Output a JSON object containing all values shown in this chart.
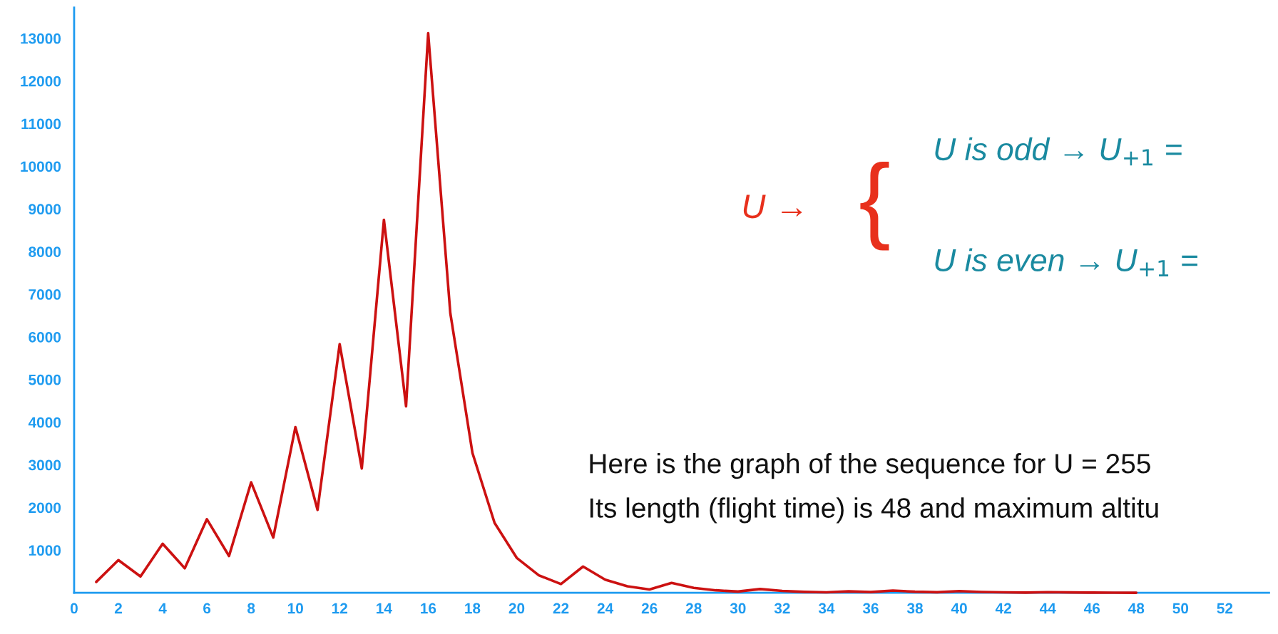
{
  "chart_data": {
    "type": "line",
    "x": [
      1,
      2,
      3,
      4,
      5,
      6,
      7,
      8,
      9,
      10,
      11,
      12,
      13,
      14,
      15,
      16,
      17,
      18,
      19,
      20,
      21,
      22,
      23,
      24,
      25,
      26,
      27,
      28,
      29,
      30,
      31,
      32,
      33,
      34,
      35,
      36,
      37,
      38,
      39,
      40,
      41,
      42,
      43,
      44,
      45,
      46,
      47,
      48
    ],
    "series": [
      {
        "color": "#cc1111",
        "values": [
          255,
          766,
          383,
          1150,
          575,
          1726,
          863,
          2590,
          1295,
          3886,
          1943,
          5830,
          2915,
          8746,
          4373,
          13120,
          6560,
          3280,
          1640,
          820,
          410,
          205,
          616,
          308,
          154,
          77,
          232,
          116,
          58,
          29,
          88,
          44,
          22,
          11,
          34,
          17,
          52,
          26,
          13,
          40,
          20,
          10,
          5,
          16,
          8,
          4,
          2,
          1
        ]
      }
    ],
    "xlim": [
      0,
      54
    ],
    "xticks": [
      0,
      2,
      4,
      6,
      8,
      10,
      12,
      14,
      16,
      18,
      20,
      22,
      24,
      26,
      28,
      30,
      32,
      34,
      36,
      38,
      40,
      42,
      44,
      46,
      48,
      50,
      52
    ],
    "ylim": [
      0,
      13720
    ],
    "yticks": [
      1000,
      2000,
      3000,
      4000,
      5000,
      6000,
      7000,
      8000,
      9000,
      10000,
      11000,
      12000,
      13000
    ],
    "grid": false,
    "marker": "none",
    "line_style": "solid",
    "annotations": [
      "U →",
      "{",
      "U is odd → U$_{+1}$ =",
      "U is even → U$_{+1}$ =",
      "Here is the graph of the sequence for U = 255",
      "Its length (flight time) is 48 and maximum altitu"
    ]
  }
}
